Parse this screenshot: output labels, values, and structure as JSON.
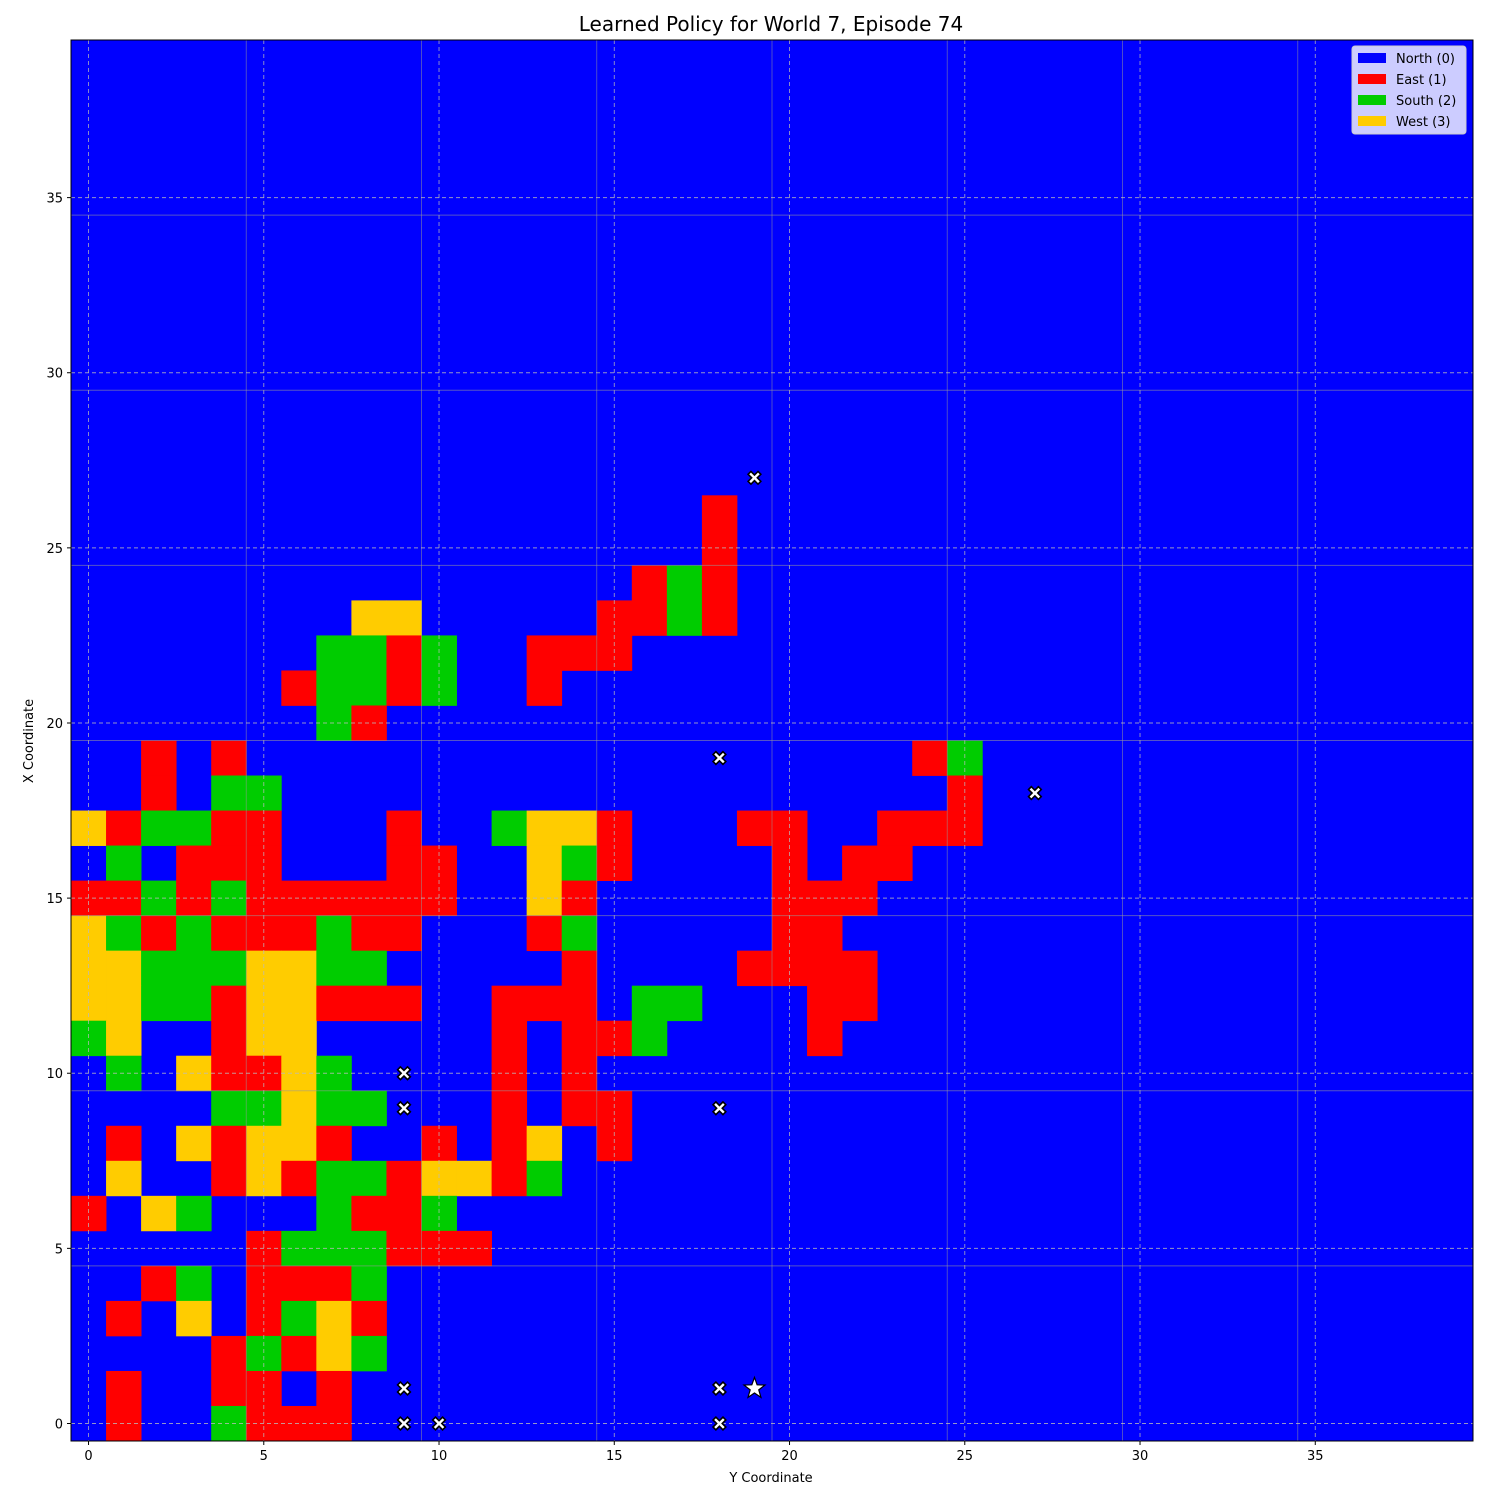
{
  "chart_data": {
    "type": "heatmap",
    "title": "Learned Policy for World 7, Episode 74",
    "xlabel": "Y Coordinate",
    "ylabel": "X Coordinate",
    "xlim": [
      -0.5,
      39.5
    ],
    "ylim": [
      -0.5,
      39.5
    ],
    "xticks": [
      "0",
      "5",
      "10",
      "15",
      "20",
      "25",
      "30",
      "35"
    ],
    "yticks": [
      "0",
      "5",
      "10",
      "15",
      "20",
      "25",
      "30",
      "35"
    ],
    "grid": true,
    "legend_position": "top-right",
    "default_action": 0,
    "actions": [
      {
        "code": 0,
        "label": "North (0)",
        "color": "#0000ff"
      },
      {
        "code": 1,
        "label": "East (1)",
        "color": "#ff0000"
      },
      {
        "code": 2,
        "label": "South (2)",
        "color": "#00cc00"
      },
      {
        "code": 3,
        "label": "West (3)",
        "color": "#ffcc00"
      }
    ],
    "cells_by_row": [
      {
        "x": 26,
        "cells": [
          [
            18,
            1
          ]
        ]
      },
      {
        "x": 25,
        "cells": [
          [
            18,
            1
          ]
        ]
      },
      {
        "x": 24,
        "cells": [
          [
            16,
            1
          ],
          [
            17,
            2
          ],
          [
            18,
            1
          ]
        ]
      },
      {
        "x": 23,
        "cells": [
          [
            8,
            3
          ],
          [
            9,
            3
          ],
          [
            15,
            1
          ],
          [
            16,
            1
          ],
          [
            17,
            2
          ],
          [
            18,
            1
          ]
        ]
      },
      {
        "x": 22,
        "cells": [
          [
            7,
            2
          ],
          [
            8,
            2
          ],
          [
            9,
            1
          ],
          [
            10,
            2
          ],
          [
            13,
            1
          ],
          [
            14,
            1
          ],
          [
            15,
            1
          ]
        ]
      },
      {
        "x": 21,
        "cells": [
          [
            6,
            1
          ],
          [
            7,
            2
          ],
          [
            8,
            2
          ],
          [
            9,
            1
          ],
          [
            10,
            2
          ],
          [
            13,
            1
          ]
        ]
      },
      {
        "x": 20,
        "cells": [
          [
            7,
            2
          ],
          [
            8,
            1
          ]
        ]
      },
      {
        "x": 19,
        "cells": [
          [
            2,
            1
          ],
          [
            4,
            1
          ],
          [
            24,
            1
          ],
          [
            25,
            2
          ]
        ]
      },
      {
        "x": 18,
        "cells": [
          [
            2,
            1
          ],
          [
            4,
            2
          ],
          [
            5,
            2
          ],
          [
            25,
            1
          ]
        ]
      },
      {
        "x": 17,
        "cells": [
          [
            0,
            3
          ],
          [
            1,
            1
          ],
          [
            2,
            2
          ],
          [
            3,
            2
          ],
          [
            4,
            1
          ],
          [
            5,
            1
          ],
          [
            9,
            1
          ],
          [
            12,
            2
          ],
          [
            13,
            3
          ],
          [
            14,
            3
          ],
          [
            15,
            1
          ],
          [
            19,
            1
          ],
          [
            20,
            1
          ],
          [
            23,
            1
          ],
          [
            24,
            1
          ],
          [
            25,
            1
          ]
        ]
      },
      {
        "x": 16,
        "cells": [
          [
            1,
            2
          ],
          [
            3,
            1
          ],
          [
            4,
            1
          ],
          [
            5,
            1
          ],
          [
            9,
            1
          ],
          [
            10,
            1
          ],
          [
            13,
            3
          ],
          [
            14,
            2
          ],
          [
            15,
            1
          ],
          [
            20,
            1
          ],
          [
            22,
            1
          ],
          [
            23,
            1
          ]
        ]
      },
      {
        "x": 15,
        "cells": [
          [
            0,
            1
          ],
          [
            1,
            1
          ],
          [
            2,
            2
          ],
          [
            3,
            1
          ],
          [
            4,
            2
          ],
          [
            5,
            1
          ],
          [
            6,
            1
          ],
          [
            7,
            1
          ],
          [
            8,
            1
          ],
          [
            9,
            1
          ],
          [
            10,
            1
          ],
          [
            13,
            3
          ],
          [
            14,
            1
          ],
          [
            20,
            1
          ],
          [
            21,
            1
          ],
          [
            22,
            1
          ]
        ]
      },
      {
        "x": 14,
        "cells": [
          [
            0,
            3
          ],
          [
            1,
            2
          ],
          [
            2,
            1
          ],
          [
            3,
            2
          ],
          [
            4,
            1
          ],
          [
            5,
            1
          ],
          [
            6,
            1
          ],
          [
            7,
            2
          ],
          [
            8,
            1
          ],
          [
            9,
            1
          ],
          [
            13,
            1
          ],
          [
            14,
            2
          ],
          [
            20,
            1
          ],
          [
            21,
            1
          ]
        ]
      },
      {
        "x": 13,
        "cells": [
          [
            0,
            3
          ],
          [
            1,
            3
          ],
          [
            2,
            2
          ],
          [
            3,
            2
          ],
          [
            4,
            2
          ],
          [
            5,
            3
          ],
          [
            6,
            3
          ],
          [
            7,
            2
          ],
          [
            8,
            2
          ],
          [
            14,
            1
          ],
          [
            19,
            1
          ],
          [
            20,
            1
          ],
          [
            21,
            1
          ],
          [
            22,
            1
          ]
        ]
      },
      {
        "x": 12,
        "cells": [
          [
            0,
            3
          ],
          [
            1,
            3
          ],
          [
            2,
            2
          ],
          [
            3,
            2
          ],
          [
            4,
            1
          ],
          [
            5,
            3
          ],
          [
            6,
            3
          ],
          [
            7,
            1
          ],
          [
            8,
            1
          ],
          [
            9,
            1
          ],
          [
            12,
            1
          ],
          [
            13,
            1
          ],
          [
            14,
            1
          ],
          [
            16,
            2
          ],
          [
            17,
            2
          ],
          [
            21,
            1
          ],
          [
            22,
            1
          ]
        ]
      },
      {
        "x": 11,
        "cells": [
          [
            0,
            2
          ],
          [
            1,
            3
          ],
          [
            4,
            1
          ],
          [
            5,
            3
          ],
          [
            6,
            3
          ],
          [
            12,
            1
          ],
          [
            14,
            1
          ],
          [
            15,
            1
          ],
          [
            16,
            2
          ],
          [
            21,
            1
          ]
        ]
      },
      {
        "x": 10,
        "cells": [
          [
            1,
            2
          ],
          [
            3,
            3
          ],
          [
            4,
            1
          ],
          [
            5,
            1
          ],
          [
            6,
            3
          ],
          [
            7,
            2
          ],
          [
            12,
            1
          ],
          [
            14,
            1
          ]
        ]
      },
      {
        "x": 9,
        "cells": [
          [
            4,
            2
          ],
          [
            5,
            2
          ],
          [
            6,
            3
          ],
          [
            7,
            2
          ],
          [
            8,
            2
          ],
          [
            12,
            1
          ],
          [
            14,
            1
          ],
          [
            15,
            1
          ]
        ]
      },
      {
        "x": 8,
        "cells": [
          [
            1,
            1
          ],
          [
            3,
            3
          ],
          [
            4,
            1
          ],
          [
            5,
            3
          ],
          [
            6,
            3
          ],
          [
            7,
            1
          ],
          [
            10,
            1
          ],
          [
            12,
            1
          ],
          [
            13,
            3
          ],
          [
            15,
            1
          ]
        ]
      },
      {
        "x": 7,
        "cells": [
          [
            1,
            3
          ],
          [
            4,
            1
          ],
          [
            5,
            3
          ],
          [
            6,
            1
          ],
          [
            7,
            2
          ],
          [
            8,
            2
          ],
          [
            9,
            1
          ],
          [
            10,
            3
          ],
          [
            11,
            3
          ],
          [
            12,
            1
          ],
          [
            13,
            2
          ]
        ]
      },
      {
        "x": 6,
        "cells": [
          [
            0,
            1
          ],
          [
            2,
            3
          ],
          [
            3,
            2
          ],
          [
            7,
            2
          ],
          [
            8,
            1
          ],
          [
            9,
            1
          ],
          [
            10,
            2
          ]
        ]
      },
      {
        "x": 5,
        "cells": [
          [
            5,
            1
          ],
          [
            6,
            2
          ],
          [
            7,
            2
          ],
          [
            8,
            2
          ],
          [
            9,
            1
          ],
          [
            10,
            1
          ],
          [
            11,
            1
          ]
        ]
      },
      {
        "x": 4,
        "cells": [
          [
            2,
            1
          ],
          [
            3,
            2
          ],
          [
            5,
            1
          ],
          [
            6,
            1
          ],
          [
            7,
            1
          ],
          [
            8,
            2
          ]
        ]
      },
      {
        "x": 3,
        "cells": [
          [
            1,
            1
          ],
          [
            3,
            3
          ],
          [
            5,
            1
          ],
          [
            6,
            2
          ],
          [
            7,
            3
          ],
          [
            8,
            1
          ]
        ]
      },
      {
        "x": 2,
        "cells": [
          [
            4,
            1
          ],
          [
            5,
            2
          ],
          [
            6,
            1
          ],
          [
            7,
            3
          ],
          [
            8,
            2
          ]
        ]
      },
      {
        "x": 1,
        "cells": [
          [
            1,
            1
          ],
          [
            4,
            1
          ],
          [
            5,
            1
          ],
          [
            7,
            1
          ]
        ]
      },
      {
        "x": 0,
        "cells": [
          [
            1,
            1
          ],
          [
            4,
            2
          ],
          [
            5,
            1
          ],
          [
            6,
            1
          ],
          [
            7,
            1
          ]
        ]
      }
    ],
    "x_markers": [
      {
        "y": 19,
        "x": 27
      },
      {
        "y": 18,
        "x": 19
      },
      {
        "y": 27,
        "x": 18
      },
      {
        "y": 9,
        "x": 10
      },
      {
        "y": 9,
        "x": 9
      },
      {
        "y": 18,
        "x": 9
      },
      {
        "y": 9,
        "x": 1
      },
      {
        "y": 18,
        "x": 1
      },
      {
        "y": 9,
        "x": 0
      },
      {
        "y": 10,
        "x": 0
      },
      {
        "y": 18,
        "x": 0
      }
    ],
    "star_markers": [
      {
        "y": 19,
        "x": 1
      }
    ]
  }
}
